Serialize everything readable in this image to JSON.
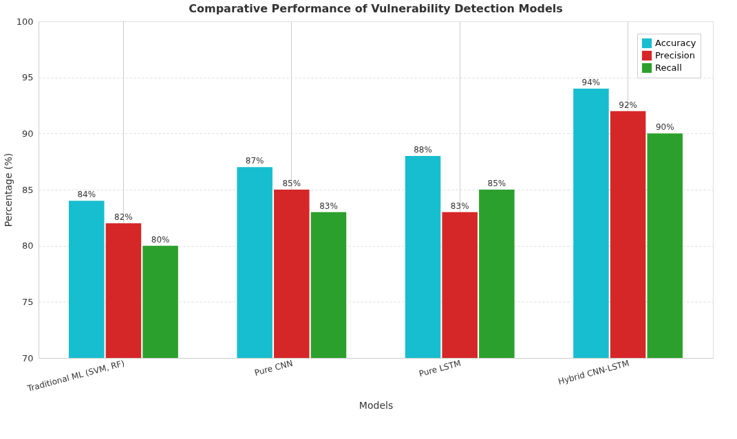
{
  "chart_data": {
    "type": "bar",
    "title": "Comparative Performance of Vulnerability Detection Models",
    "xlabel": "Models",
    "ylabel": "Percentage (%)",
    "categories": [
      "Traditional ML (SVM, RF)",
      "Pure CNN",
      "Pure LSTM",
      "Hybrid CNN-LSTM"
    ],
    "series": [
      {
        "name": "Accuracy",
        "color": "#17becf",
        "values": [
          84,
          87,
          88,
          94
        ],
        "value_labels": [
          "84%",
          "87%",
          "88%",
          "94%"
        ]
      },
      {
        "name": "Precision",
        "color": "#d62728",
        "values": [
          82,
          85,
          83,
          92
        ],
        "value_labels": [
          "82%",
          "85%",
          "83%",
          "92%"
        ]
      },
      {
        "name": "Recall",
        "color": "#2ca02c",
        "values": [
          80,
          83,
          85,
          90
        ],
        "value_labels": [
          "80%",
          "83%",
          "85%",
          "90%"
        ]
      }
    ],
    "ylim": [
      70,
      100
    ],
    "yticks": [
      70,
      75,
      80,
      85,
      90,
      95,
      100
    ],
    "grid": true,
    "legend": "top right"
  }
}
